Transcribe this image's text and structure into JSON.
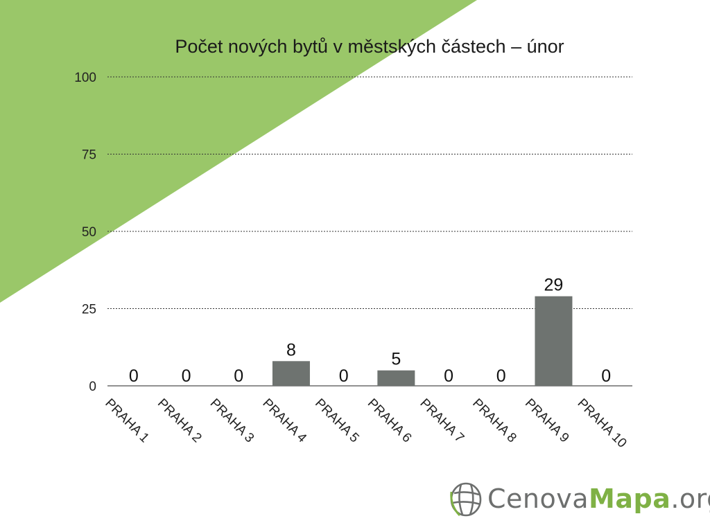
{
  "colors": {
    "accent_green": "#9ac769",
    "bar": "#6e7370",
    "grid": "#333333",
    "logo_gray": "#6d6f6e",
    "logo_green": "#7fb145"
  },
  "chart_data": {
    "type": "bar",
    "title": "Počet nových bytů v městských částech – únor",
    "xlabel": "",
    "ylabel": "",
    "categories": [
      "PRAHA 1",
      "PRAHA 2",
      "PRAHA 3",
      "PRAHA 4",
      "PRAHA 5",
      "PRAHA 6",
      "PRAHA 7",
      "PRAHA 8",
      "PRAHA 9",
      "PRAHA 10"
    ],
    "values": [
      0,
      0,
      0,
      8,
      0,
      5,
      0,
      0,
      29,
      0
    ],
    "ylim": [
      0,
      100
    ],
    "yticks": [
      0,
      25,
      50,
      75,
      100
    ],
    "grid": true,
    "legend": false,
    "data_labels": true
  },
  "logo": {
    "icon": "globe-icon",
    "part1": "Cenova",
    "part2": "Mapa",
    "part3": ".org"
  }
}
